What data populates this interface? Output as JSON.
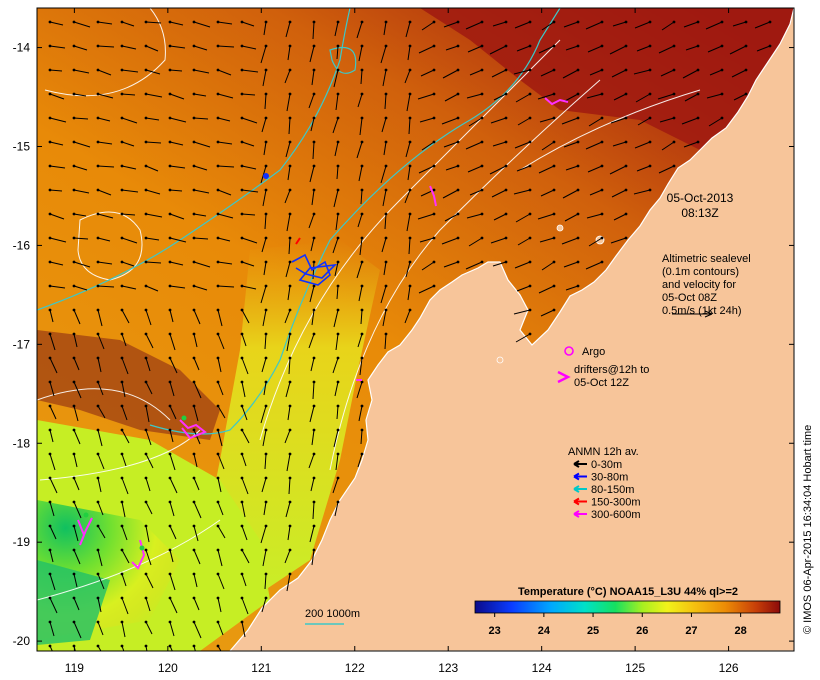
{
  "map": {
    "lon_range": [
      118.6,
      126.7
    ],
    "lat_range": [
      -20.1,
      -13.6
    ],
    "x_ticks": [
      "119",
      "120",
      "121",
      "122",
      "123",
      "124",
      "125",
      "126"
    ],
    "y_ticks": [
      "-14",
      "-15",
      "-16",
      "-17",
      "-18",
      "-19",
      "-20"
    ],
    "land_color": "#f7c59a"
  },
  "timestamp": {
    "date": "05-Oct-2013",
    "time": "08:13Z"
  },
  "altimetry_note": {
    "lines": [
      "Altimetric sealevel",
      "(0.1m contours)",
      "and velocity for",
      "05-Oct 08Z",
      "0.5m/s (1kt 24h)"
    ]
  },
  "argo_label": "Argo",
  "drifter_label": {
    "lines": [
      "drifters@12h to",
      "05-Oct 12Z"
    ]
  },
  "anmn_legend": {
    "title": "ANMN 12h av.",
    "items": [
      {
        "label": "0-30m",
        "color": "#000000"
      },
      {
        "label": "30-80m",
        "color": "#0000ff"
      },
      {
        "label": "80-150m",
        "color": "#00c8c8"
      },
      {
        "label": "150-300m",
        "color": "#ff0000"
      },
      {
        "label": "300-600m",
        "color": "#ff00ff"
      }
    ]
  },
  "isobath_label": "200 1000m",
  "colorbar": {
    "title": "Temperature (°C) NOAA15_L3U 44% ql>=2",
    "ticks": [
      "23",
      "24",
      "25",
      "26",
      "27",
      "28"
    ],
    "range": [
      22.6,
      28.8
    ]
  },
  "credit": "© IMOS 06-Apr-2015 16:34:04 Hobart time"
}
